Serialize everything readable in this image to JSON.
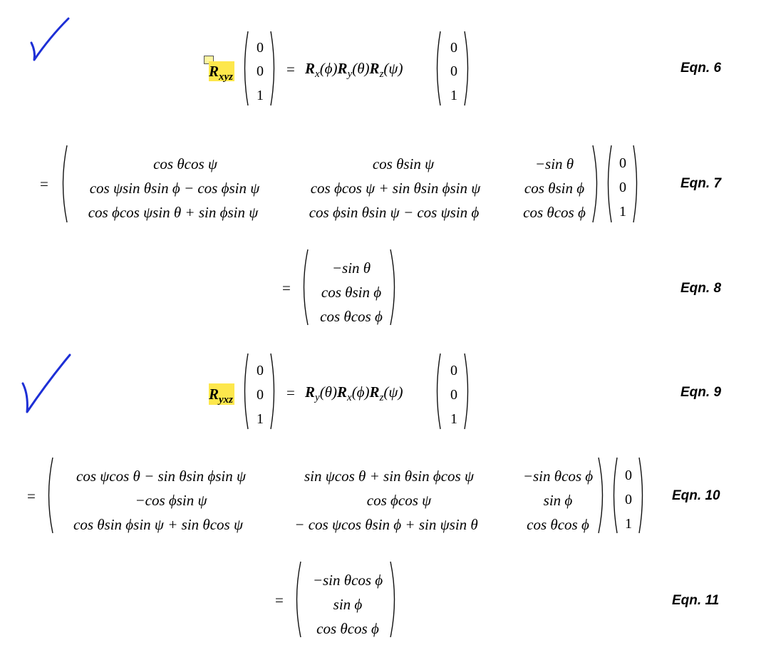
{
  "labels": {
    "eqn6": "Eqn. 6",
    "eqn7": "Eqn. 7",
    "eqn8": "Eqn. 8",
    "eqn9": "Eqn. 9",
    "eqn10": "Eqn. 10",
    "eqn11": "Eqn. 11"
  },
  "eq6": {
    "lhs_R": "R",
    "lhs_sub": "xyz",
    "vec": [
      "0",
      "0",
      "1"
    ],
    "rhs": [
      "R",
      "x",
      "(ϕ)",
      "R",
      "y",
      "(θ)",
      "R",
      "z",
      "(ψ)"
    ]
  },
  "eq7": {
    "rows": [
      [
        "cos θcos ψ",
        "cos θsin ψ",
        "−sin θ"
      ],
      [
        "cos ψsin θsin ϕ − cos ϕsin ψ",
        "cos ϕcos ψ + sin θsin ϕsin ψ",
        "cos θsin ϕ"
      ],
      [
        "cos ϕcos ψsin θ + sin ϕsin ψ",
        "cos ϕsin θsin ψ − cos ψsin ϕ",
        "cos θcos ϕ"
      ]
    ],
    "vec": [
      "0",
      "0",
      "1"
    ]
  },
  "eq8": {
    "vec": [
      "−sin θ",
      "cos θsin ϕ",
      "cos θcos ϕ"
    ]
  },
  "eq9": {
    "lhs_R": "R",
    "lhs_sub": "yxz",
    "vec": [
      "0",
      "0",
      "1"
    ],
    "rhs": [
      "R",
      "y",
      "(θ)",
      "R",
      "x",
      "(ϕ)",
      "R",
      "z",
      "(ψ)"
    ]
  },
  "eq10": {
    "rows": [
      [
        "cos ψcos θ − sin θsin ϕsin ψ",
        "sin ψcos θ + sin θsin ϕcos ψ",
        "−sin θcos ϕ"
      ],
      [
        "−cos ϕsin ψ",
        "cos ϕcos ψ",
        "sin ϕ"
      ],
      [
        "cos θsin ϕsin ψ + sin θcos ψ",
        "− cos ψcos θsin ϕ + sin ψsin θ",
        "cos θcos ϕ"
      ]
    ],
    "vec": [
      "0",
      "0",
      "1"
    ]
  },
  "eq11": {
    "vec": [
      "−sin θcos ϕ",
      "sin ϕ",
      "cos θcos ϕ"
    ]
  },
  "symbols": {
    "equals": "="
  },
  "colors": {
    "highlight": "#fde74c",
    "check": "#1d2fd6"
  }
}
